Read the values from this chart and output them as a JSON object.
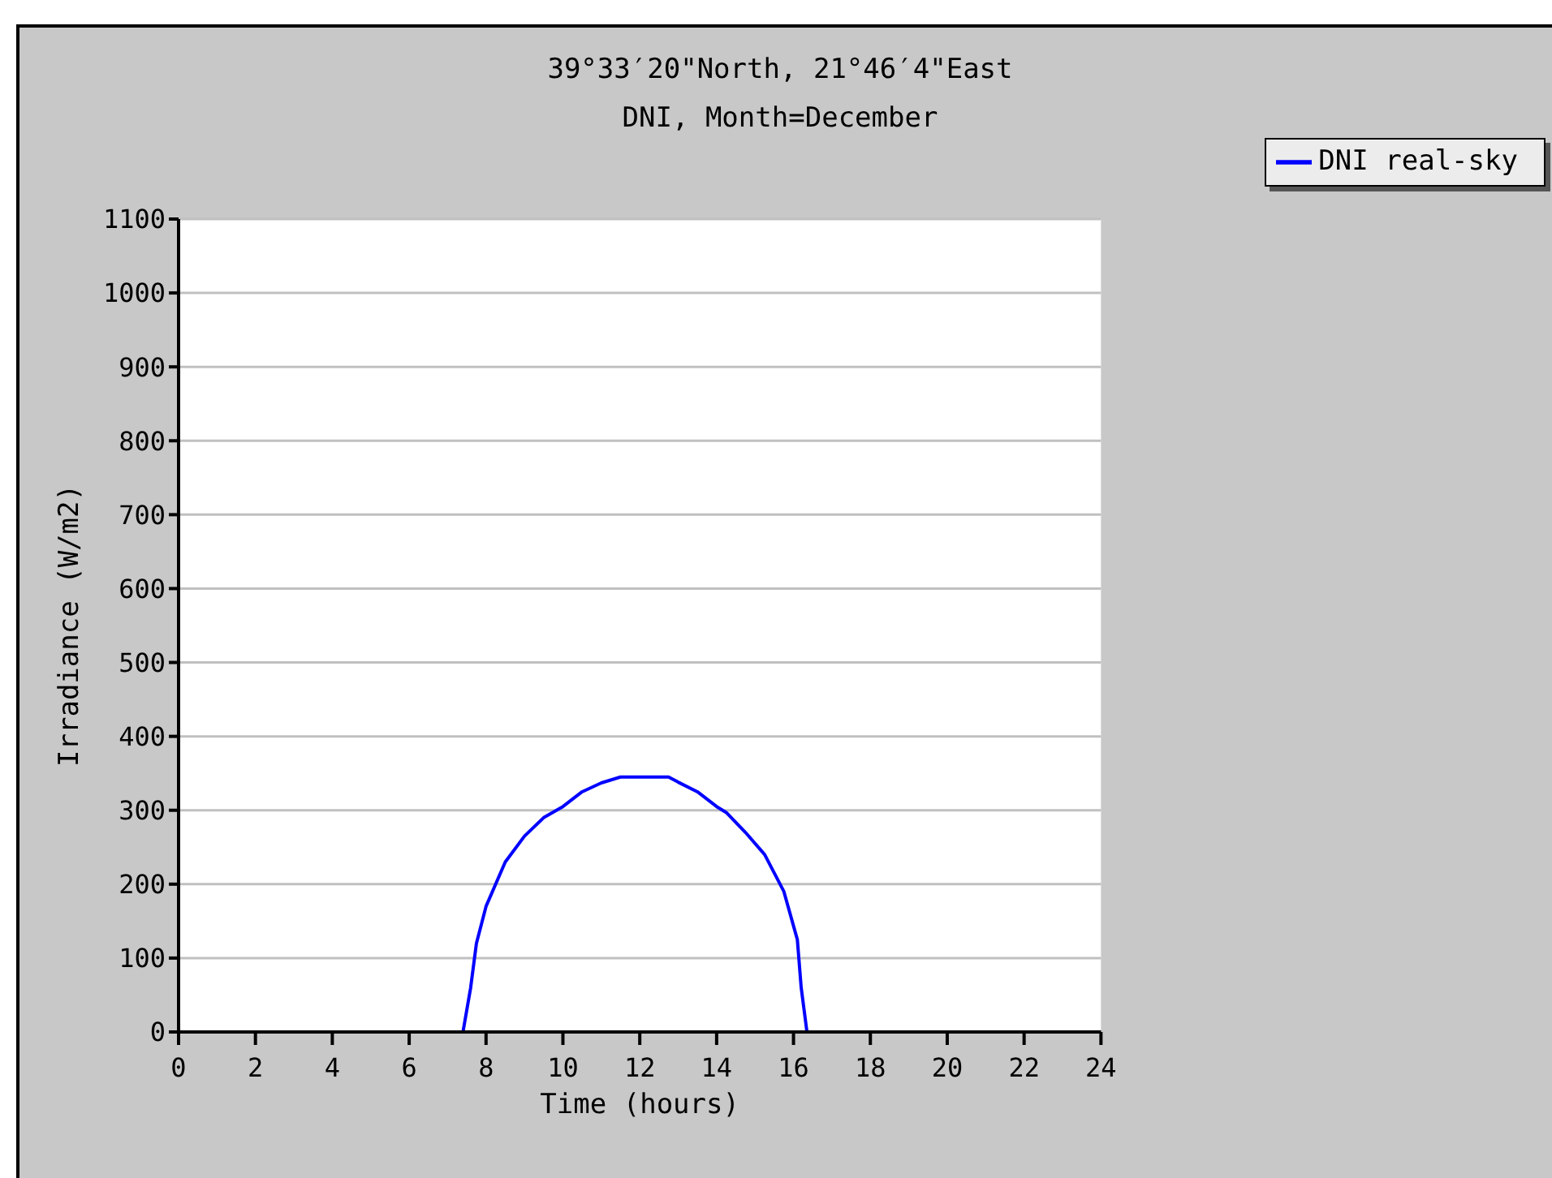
{
  "chart_data": {
    "type": "line",
    "title": "39°33′20\"North, 21°46′4\"East",
    "subtitle": "DNI, Month=December",
    "xlabel": "Time (hours)",
    "ylabel": "Irradiance (W/m2)",
    "series": [
      {
        "name": "DNI real-sky",
        "color": "#0000ff",
        "x": [
          0,
          7.4,
          7.6,
          7.75,
          8,
          8.5,
          9,
          9.5,
          10,
          10.5,
          11,
          11.5,
          12,
          12.75,
          13,
          13.5,
          14,
          14.25,
          14.75,
          15.25,
          15.75,
          16.1,
          16.2,
          16.35,
          24
        ],
        "values": [
          0,
          0,
          60,
          120,
          170,
          230,
          265,
          290,
          305,
          325,
          337,
          345,
          345,
          345,
          338,
          325,
          305,
          297,
          270,
          240,
          190,
          125,
          60,
          0,
          0
        ]
      }
    ],
    "xlim": [
      0,
      24
    ],
    "xticks": [
      0,
      2,
      4,
      6,
      8,
      10,
      12,
      14,
      16,
      18,
      20,
      22,
      24
    ],
    "ylim": [
      0,
      1100
    ],
    "yticks": [
      0,
      100,
      200,
      300,
      400,
      500,
      600,
      700,
      800,
      900,
      1000,
      1100
    ],
    "grid": "y",
    "legend": "top right",
    "marker": "none",
    "line_style": "solid"
  }
}
